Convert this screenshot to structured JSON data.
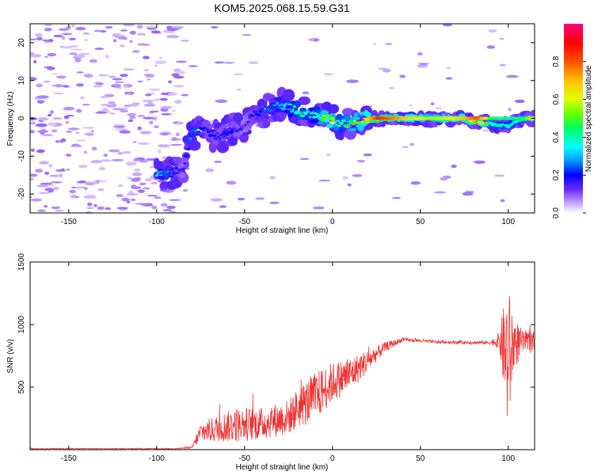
{
  "title": "KOM5.2025.068.15.59.G31",
  "chart_data": [
    {
      "type": "heatmap",
      "xlabel": "Height of straight line (km)",
      "ylabel": "Frequency (Hz)",
      "xlim": [
        -172,
        115
      ],
      "ylim": [
        -25,
        25
      ],
      "xticks": [
        -150,
        -100,
        -50,
        0,
        50,
        100
      ],
      "yticks": [
        -20,
        -10,
        0,
        10,
        20
      ],
      "colorbar": {
        "label": "Normalized spectral amplitude",
        "range": [
          0,
          1
        ],
        "ticks": [
          0.0,
          0.2,
          0.4,
          0.6,
          0.8
        ],
        "colors": [
          "#ffffff",
          "#c8a8ff",
          "#7030ff",
          "#0000ff",
          "#00a0ff",
          "#00ffff",
          "#00ff60",
          "#60ff00",
          "#e0ff00",
          "#ffc000",
          "#ff5000",
          "#ff0000",
          "#ff0080"
        ]
      },
      "ridge": [
        {
          "x": -100,
          "f": -15,
          "a": 0.35
        },
        {
          "x": -92,
          "f": -14.5,
          "a": 0.25
        },
        {
          "x": -85,
          "f": -13,
          "a": 0.15
        },
        {
          "x": -80,
          "f": -4,
          "a": 0.3
        },
        {
          "x": -72,
          "f": -3,
          "a": 0.2
        },
        {
          "x": -65,
          "f": -5,
          "a": 0.18
        },
        {
          "x": -58,
          "f": -3,
          "a": 0.2
        },
        {
          "x": -50,
          "f": -2,
          "a": 0.15
        },
        {
          "x": -45,
          "f": 1,
          "a": 0.2
        },
        {
          "x": -38,
          "f": 2,
          "a": 0.25
        },
        {
          "x": -32,
          "f": 3.5,
          "a": 0.3
        },
        {
          "x": -25,
          "f": 3,
          "a": 0.35
        },
        {
          "x": -18,
          "f": 1.5,
          "a": 0.45
        },
        {
          "x": -10,
          "f": 0.5,
          "a": 0.35
        },
        {
          "x": -3,
          "f": 0,
          "a": 0.65
        },
        {
          "x": 5,
          "f": -1.5,
          "a": 0.4
        },
        {
          "x": 12,
          "f": -1,
          "a": 0.55
        },
        {
          "x": 18,
          "f": -0.5,
          "a": 0.6
        },
        {
          "x": 25,
          "f": 0,
          "a": 0.85
        },
        {
          "x": 40,
          "f": 0,
          "a": 0.7
        },
        {
          "x": 55,
          "f": 0,
          "a": 0.55
        },
        {
          "x": 65,
          "f": 0,
          "a": 0.6
        },
        {
          "x": 75,
          "f": 0,
          "a": 0.7
        },
        {
          "x": 82,
          "f": -1,
          "a": 0.8
        },
        {
          "x": 90,
          "f": -1.5,
          "a": 0.45
        },
        {
          "x": 100,
          "f": -2,
          "a": 0.4
        },
        {
          "x": 108,
          "f": 0,
          "a": 0.45
        },
        {
          "x": 115,
          "f": 0,
          "a": 0.7
        }
      ]
    },
    {
      "type": "line",
      "xlabel": "Height of straight line (km)",
      "ylabel": "SNR (v/v)",
      "xlim": [
        -172,
        115
      ],
      "ylim": [
        0,
        1500
      ],
      "xticks": [
        -150,
        -100,
        -50,
        0,
        50,
        100
      ],
      "yticks": [
        500,
        1000,
        1500
      ],
      "line_color": "#ee3333",
      "envelope": [
        {
          "x": -172,
          "v": 8,
          "n": 3
        },
        {
          "x": -90,
          "v": 8,
          "n": 3
        },
        {
          "x": -80,
          "v": 15,
          "n": 8
        },
        {
          "x": -75,
          "v": 140,
          "n": 80
        },
        {
          "x": -55,
          "v": 200,
          "n": 140
        },
        {
          "x": -40,
          "v": 210,
          "n": 130
        },
        {
          "x": -25,
          "v": 260,
          "n": 140
        },
        {
          "x": -20,
          "v": 330,
          "n": 160
        },
        {
          "x": -10,
          "v": 420,
          "n": 200
        },
        {
          "x": 0,
          "v": 540,
          "n": 160
        },
        {
          "x": 10,
          "v": 600,
          "n": 140
        },
        {
          "x": 20,
          "v": 710,
          "n": 90
        },
        {
          "x": 30,
          "v": 820,
          "n": 40
        },
        {
          "x": 40,
          "v": 880,
          "n": 15
        },
        {
          "x": 60,
          "v": 860,
          "n": 12
        },
        {
          "x": 90,
          "v": 855,
          "n": 15
        },
        {
          "x": 95,
          "v": 870,
          "n": 70
        },
        {
          "x": 98,
          "v": 800,
          "n": 420
        },
        {
          "x": 100,
          "v": 700,
          "n": 620
        },
        {
          "x": 103,
          "v": 850,
          "n": 240
        },
        {
          "x": 108,
          "v": 860,
          "n": 90
        },
        {
          "x": 115,
          "v": 860,
          "n": 90
        }
      ]
    }
  ]
}
